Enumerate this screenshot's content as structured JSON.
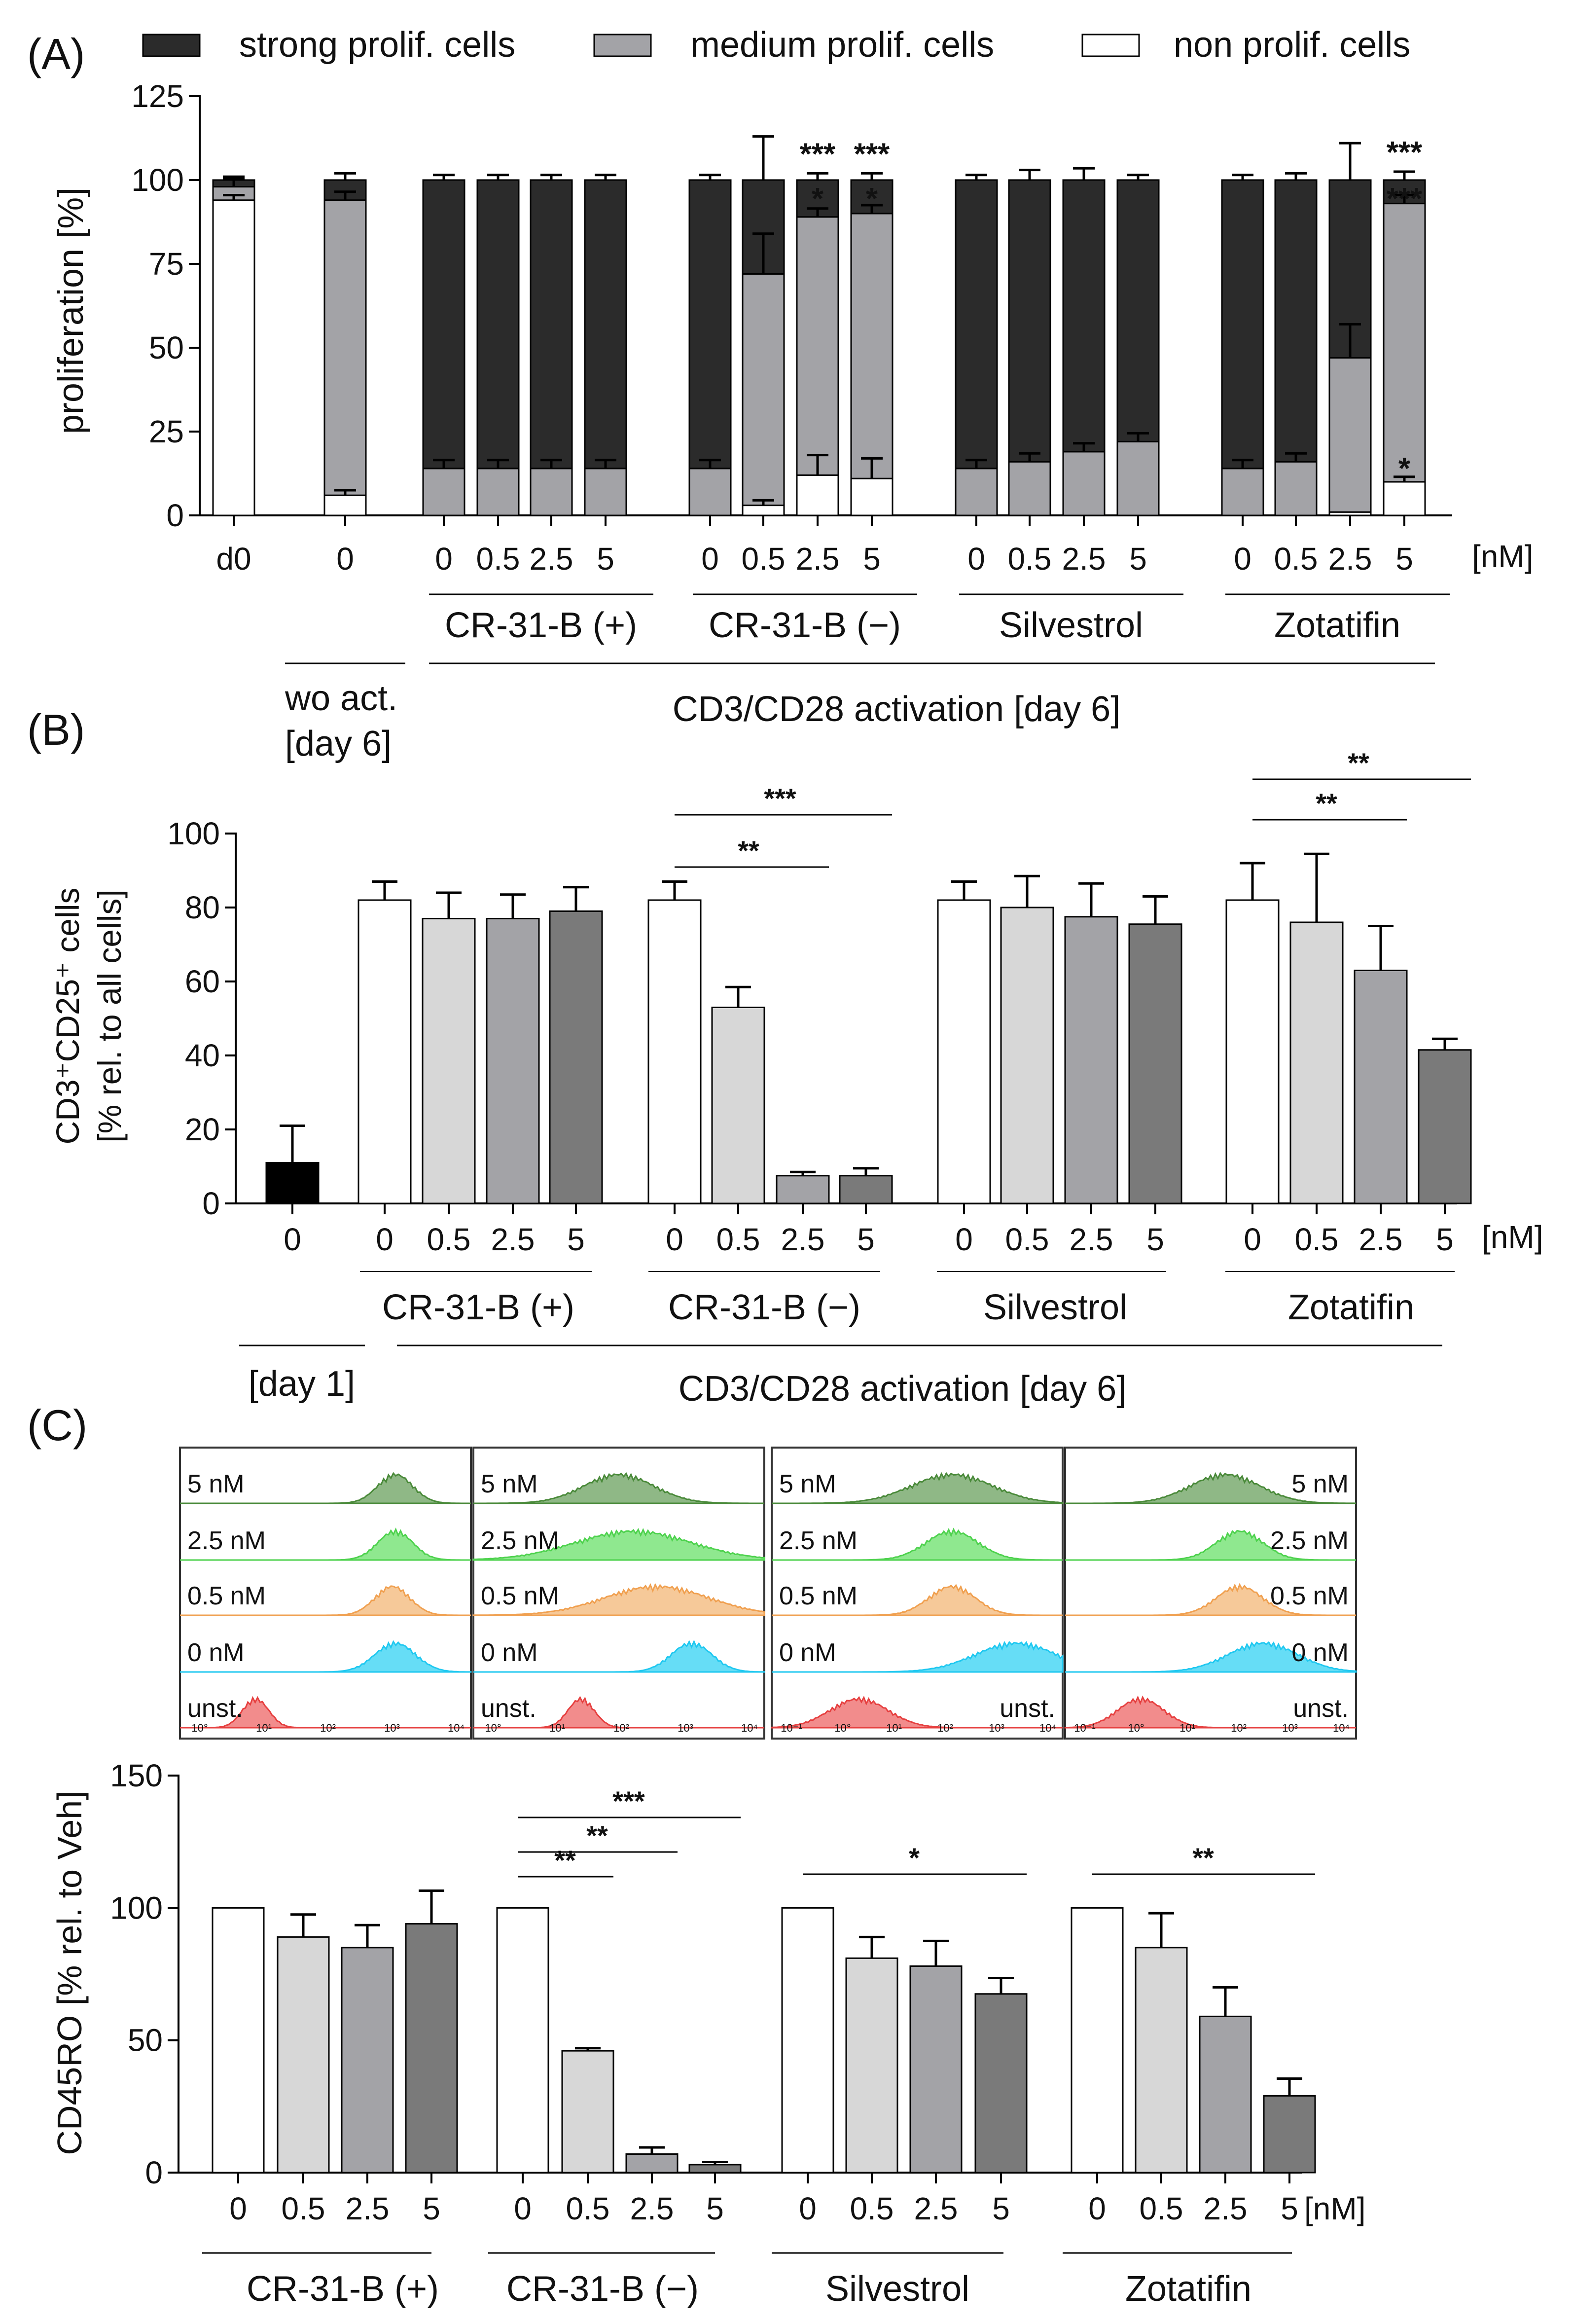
{
  "unit_label": "[nM]",
  "conc_labels": [
    "0",
    "0.5",
    "2.5",
    "5"
  ],
  "groups": [
    "CR-31-B (+)",
    "CR-31-B (−)",
    "Silvestrol",
    "Zotatifin"
  ],
  "panel_a": {
    "letter": "(A)",
    "ylabel": "proliferation [%]",
    "legend": [
      "strong prolif. cells",
      "medium prolif. cells",
      "non prolif. cells"
    ],
    "ctrl_labels": [
      "d0",
      "0"
    ],
    "wo_label_1": "wo act.",
    "wo_label_2": "[day 6]",
    "activation_label": "CD3/CD28 activation [day 6]"
  },
  "panel_b": {
    "letter": "(B)",
    "ylabel_1": "CD3⁺CD25⁺ cells",
    "ylabel_2": "[% rel. to all cells]",
    "ctrl_label": "0",
    "day1_label": "[day 1]",
    "activation_label": "CD3/CD28 activation [day 6]"
  },
  "panel_c": {
    "letter": "(C)",
    "ylabel": "CD45RO [% rel. to Veh]",
    "hist_labels": [
      "5 nM",
      "2.5 nM",
      "0.5 nM",
      "0 nM",
      "unst."
    ],
    "hist_ticks": [
      "10°",
      "10¹",
      "10²",
      "10³",
      "10⁴"
    ],
    "hist_ticks_b": [
      "10⁻¹",
      "10°",
      "10¹",
      "10²",
      "10³",
      "10⁴"
    ]
  },
  "colors": {
    "strong": "#2b2b2b",
    "medium": "#a3a3a7",
    "non": "#ffffff",
    "c0": "#ffffff",
    "c05": "#d7d7d7",
    "c25": "#a3a3a7",
    "c5": "#7a7a7a",
    "ctrl_b": "#000000",
    "hist": [
      "#4a8a3a",
      "#4ed24e",
      "#f0a050",
      "#20c8f0",
      "#e64040"
    ],
    "hist_fill": [
      "#8fb886",
      "#8fe88f",
      "#f6c999",
      "#66ddf6",
      "#f28c8c"
    ]
  },
  "chart_data": [
    {
      "type": "bar",
      "title": "(A) proliferation, stacked",
      "ylabel": "proliferation [%]",
      "ylim": [
        0,
        125
      ],
      "yticks": [
        "0",
        "25",
        "50",
        "75",
        "100",
        "125"
      ],
      "categories": [
        "d0",
        "0",
        "CR-31-B (+) 0",
        "CR-31-B (+) 0.5",
        "CR-31-B (+) 2.5",
        "CR-31-B (+) 5",
        "CR-31-B (−) 0",
        "CR-31-B (−) 0.5",
        "CR-31-B (−) 2.5",
        "CR-31-B (−) 5",
        "Silvestrol 0",
        "Silvestrol 0.5",
        "Silvestrol 2.5",
        "Silvestrol 5",
        "Zotatifin 0",
        "Zotatifin 0.5",
        "Zotatifin 2.5",
        "Zotatifin 5"
      ],
      "series": [
        {
          "name": "non prolif. cells",
          "values": [
            94,
            6,
            0,
            0,
            0,
            0,
            0,
            3,
            12,
            11,
            0,
            0,
            0,
            0,
            0,
            0,
            1,
            10
          ]
        },
        {
          "name": "medium prolif. cells",
          "values": [
            4,
            88,
            14,
            14,
            14,
            14,
            14,
            69,
            77,
            79,
            14,
            16,
            19,
            22,
            14,
            16,
            46,
            83
          ]
        },
        {
          "name": "strong prolif. cells",
          "values": [
            2,
            6,
            86,
            86,
            86,
            86,
            86,
            28,
            11,
            10,
            86,
            84,
            81,
            78,
            86,
            84,
            53,
            7
          ]
        }
      ],
      "errors": [
        1,
        2,
        1.5,
        1.5,
        1.5,
        1.5,
        1.5,
        13,
        2,
        2,
        1.5,
        3,
        3.5,
        1.5,
        1.5,
        2,
        11,
        2.5
      ],
      "annotations": [
        {
          "bar": 8,
          "text": "***",
          "pos": "top"
        },
        {
          "bar": 9,
          "text": "***",
          "pos": "top"
        },
        {
          "bar": 8,
          "text": "*",
          "pos": "inside"
        },
        {
          "bar": 9,
          "text": "*",
          "pos": "inside"
        },
        {
          "bar": 17,
          "text": "***",
          "pos": "top"
        },
        {
          "bar": 17,
          "text": "***",
          "pos": "inside"
        },
        {
          "bar": 17,
          "text": "*",
          "pos": "low"
        }
      ]
    },
    {
      "type": "bar",
      "title": "(B) CD3+CD25+ cells",
      "ylabel": "CD3+CD25+ cells [% rel. to all cells]",
      "ylim": [
        0,
        100
      ],
      "yticks": [
        "0",
        "20",
        "40",
        "60",
        "80",
        "100"
      ],
      "categories": [
        "0 [day 1]",
        "CR-31-B (+) 0",
        "CR-31-B (+) 0.5",
        "CR-31-B (+) 2.5",
        "CR-31-B (+) 5",
        "CR-31-B (−) 0",
        "CR-31-B (−) 0.5",
        "CR-31-B (−) 2.5",
        "CR-31-B (−) 5",
        "Silvestrol 0",
        "Silvestrol 0.5",
        "Silvestrol 2.5",
        "Silvestrol 5",
        "Zotatifin 0",
        "Zotatifin 0.5",
        "Zotatifin 2.5",
        "Zotatifin 5"
      ],
      "values": [
        11,
        82,
        77,
        77,
        79,
        82,
        53,
        7.5,
        7.5,
        82,
        80,
        77.5,
        75.5,
        82,
        76,
        63,
        41.5
      ],
      "errors": [
        10,
        5,
        7,
        6.5,
        6.5,
        5,
        5.5,
        1,
        2,
        5,
        8.5,
        9,
        7.5,
        10,
        18.5,
        12,
        3
      ],
      "significance": [
        {
          "from": 5,
          "to": 7,
          "text": "**"
        },
        {
          "from": 5,
          "to": 8,
          "text": "***"
        },
        {
          "from": 13,
          "to": 15,
          "text": "**"
        },
        {
          "from": 13,
          "to": 16,
          "text": "**"
        }
      ]
    },
    {
      "type": "bar",
      "title": "(C) CD45RO",
      "ylabel": "CD45RO [% rel. to Veh]",
      "ylim": [
        0,
        150
      ],
      "yticks": [
        "0",
        "50",
        "100",
        "150"
      ],
      "categories": [
        "CR-31-B (+) 0",
        "CR-31-B (+) 0.5",
        "CR-31-B (+) 2.5",
        "CR-31-B (+) 5",
        "CR-31-B (−) 0",
        "CR-31-B (−) 0.5",
        "CR-31-B (−) 2.5",
        "CR-31-B (−) 5",
        "Silvestrol 0",
        "Silvestrol 0.5",
        "Silvestrol 2.5",
        "Silvestrol 5",
        "Zotatifin 0",
        "Zotatifin 0.5",
        "Zotatifin 2.5",
        "Zotatifin 5"
      ],
      "values": [
        100,
        89,
        85,
        94,
        100,
        46,
        7,
        3,
        100,
        81,
        78,
        67.5,
        100,
        85,
        59,
        29
      ],
      "errors": [
        0,
        8.5,
        8.5,
        12.5,
        0,
        1,
        2.5,
        1,
        0,
        8,
        9.5,
        6,
        0,
        13,
        11,
        6.5
      ],
      "significance": [
        {
          "from": 4,
          "to": 5,
          "text": "**"
        },
        {
          "from": 4,
          "to": 6,
          "text": "**"
        },
        {
          "from": 4,
          "to": 7,
          "text": "***"
        },
        {
          "from": 8,
          "to": 11,
          "text": "*"
        },
        {
          "from": 12,
          "to": 15,
          "text": "**"
        }
      ]
    }
  ]
}
